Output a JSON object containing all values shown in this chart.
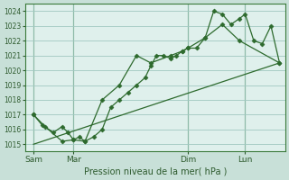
{
  "background_color": "#c8e0d8",
  "plot_bg_color": "#dff0ec",
  "grid_color": "#a0c8c0",
  "line_color": "#2d6a2d",
  "marker_color": "#2d6a2d",
  "title": "Pression niveau de la mer( hPa )",
  "ylim": [
    1014.5,
    1024.5
  ],
  "yticks": [
    1015,
    1016,
    1017,
    1018,
    1019,
    1020,
    1021,
    1022,
    1023,
    1024
  ],
  "xlim": [
    0.0,
    4.55
  ],
  "day_labels": [
    "Sam",
    "Mar",
    "Dim",
    "Lun"
  ],
  "day_positions": [
    0.15,
    0.85,
    2.85,
    3.85
  ],
  "vline_positions": [
    0.15,
    0.85,
    2.85,
    3.85
  ],
  "series1_x": [
    0.15,
    0.3,
    0.5,
    0.65,
    0.75,
    0.85,
    0.95,
    1.05,
    1.2,
    1.35,
    1.5,
    1.65,
    1.8,
    1.95,
    2.1,
    2.2,
    2.3,
    2.42,
    2.55,
    2.65,
    2.75,
    2.85,
    3.0,
    3.15,
    3.3,
    3.45,
    3.6,
    3.75,
    3.85,
    4.0,
    4.15,
    4.3,
    4.45
  ],
  "series1_y": [
    1017.0,
    1016.3,
    1015.8,
    1016.2,
    1015.8,
    1015.3,
    1015.5,
    1015.2,
    1015.5,
    1016.0,
    1017.5,
    1018.0,
    1018.5,
    1019.0,
    1019.5,
    1020.3,
    1021.0,
    1021.0,
    1020.8,
    1021.0,
    1021.3,
    1021.5,
    1021.5,
    1022.2,
    1024.0,
    1023.8,
    1023.1,
    1023.5,
    1023.8,
    1022.0,
    1021.8,
    1023.0,
    1020.5
  ],
  "series2_x": [
    0.15,
    0.35,
    0.65,
    0.85,
    1.05,
    1.35,
    1.65,
    1.95,
    2.2,
    2.55,
    2.75,
    2.85,
    3.15,
    3.45,
    3.75,
    4.45
  ],
  "series2_y": [
    1017.0,
    1016.2,
    1015.2,
    1015.3,
    1015.2,
    1018.0,
    1019.0,
    1021.0,
    1020.5,
    1021.0,
    1021.3,
    1021.5,
    1022.2,
    1023.1,
    1022.0,
    1020.5
  ],
  "trend_x": [
    0.15,
    4.45
  ],
  "trend_y": [
    1015.0,
    1020.5
  ]
}
